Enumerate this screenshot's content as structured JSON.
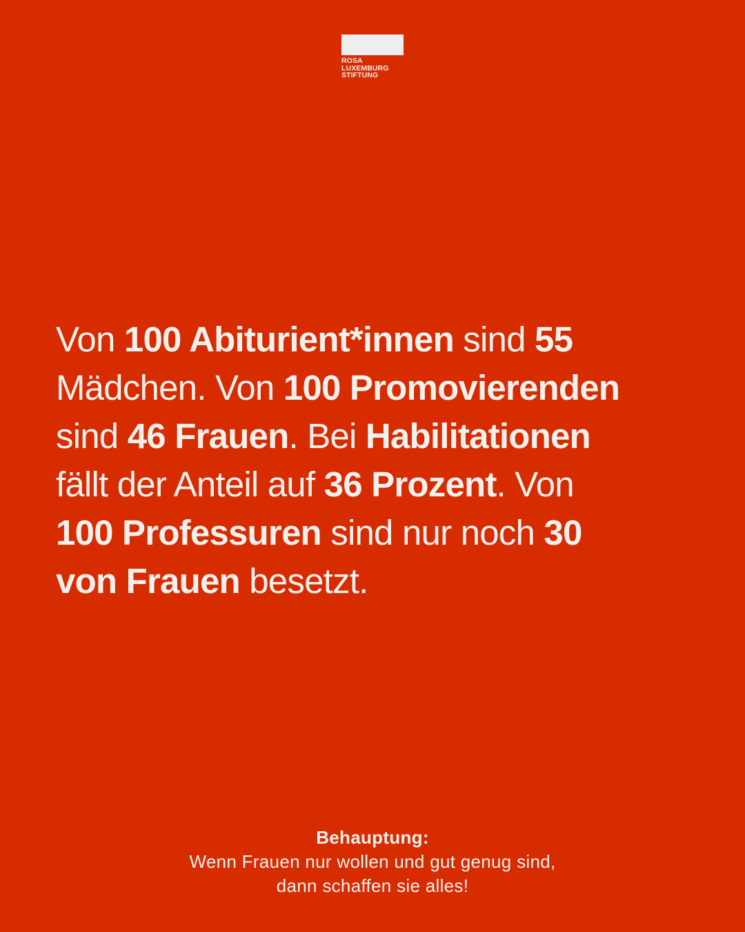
{
  "logo": {
    "lines": [
      "ROSA",
      "LUXEMBURG",
      "STIFTUNG"
    ]
  },
  "statement": {
    "lines": [
      [
        {
          "t": "Von ",
          "b": false
        },
        {
          "t": "100 Abiturient*innen",
          "b": true
        },
        {
          "t": " sind ",
          "b": false
        },
        {
          "t": "55",
          "b": true
        }
      ],
      [
        {
          "t": "Mädchen. Von ",
          "b": false
        },
        {
          "t": "100 Promovierenden",
          "b": true
        }
      ],
      [
        {
          "t": "sind ",
          "b": false
        },
        {
          "t": "46 Frauen",
          "b": true
        },
        {
          "t": ". Bei ",
          "b": false
        },
        {
          "t": "Habilitationen",
          "b": true
        }
      ],
      [
        {
          "t": "fällt der Anteil auf ",
          "b": false
        },
        {
          "t": "36 Prozent",
          "b": true
        },
        {
          "t": ". Von",
          "b": false
        }
      ],
      [
        {
          "t": "100 Professuren",
          "b": true
        },
        {
          "t": " sind nur noch ",
          "b": false
        },
        {
          "t": "30",
          "b": true
        }
      ],
      [
        {
          "t": "von Frauen",
          "b": true
        },
        {
          "t": " besetzt.",
          "b": false
        }
      ]
    ]
  },
  "claim": {
    "heading": "Behauptung:",
    "line1": "Wenn Frauen nur wollen und gut genug sind,",
    "line2": "dann schaffen sie alles!"
  },
  "colors": {
    "background": "#d72b00",
    "text": "#f3f1ed"
  }
}
